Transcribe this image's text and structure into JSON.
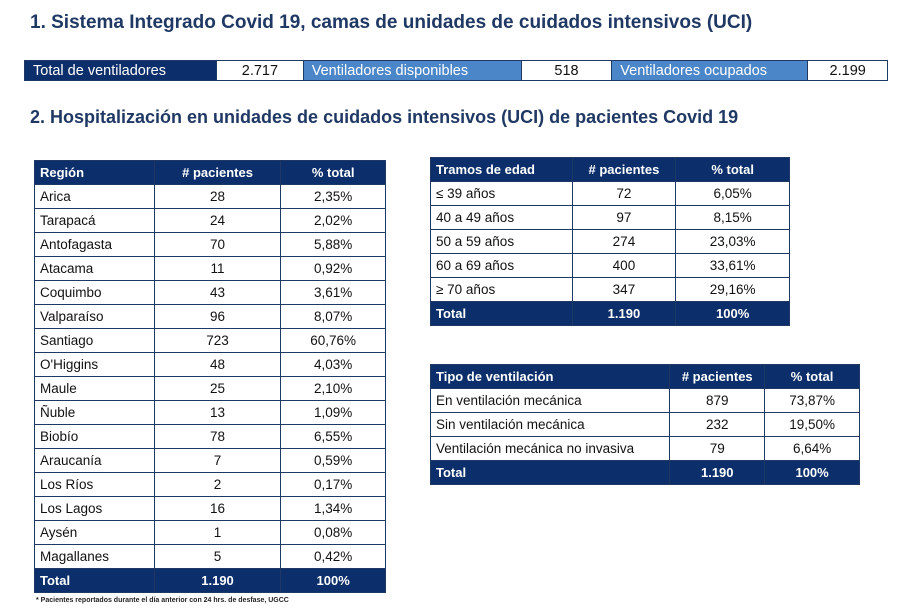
{
  "section1_title": "1. Sistema Integrado Covid 19, camas de unidades de cuidados intensivos (UCI)",
  "summary": {
    "total_label": "Total de ventiladores",
    "total_value": "2.717",
    "disponibles_label": "Ventiladores disponibles",
    "disponibles_value": "518",
    "ocupados_label": "Ventiladores ocupados",
    "ocupados_value": "2.199"
  },
  "section2_title": "2. Hospitalización en unidades de cuidados intensivos (UCI) de pacientes Covid 19",
  "region_table": {
    "headers": [
      "Región",
      "# pacientes",
      "% total"
    ],
    "rows": [
      [
        "Arica",
        "28",
        "2,35%"
      ],
      [
        "Tarapacá",
        "24",
        "2,02%"
      ],
      [
        "Antofagasta",
        "70",
        "5,88%"
      ],
      [
        "Atacama",
        "11",
        "0,92%"
      ],
      [
        "Coquimbo",
        "43",
        "3,61%"
      ],
      [
        "Valparaíso",
        "96",
        "8,07%"
      ],
      [
        "Santiago",
        "723",
        "60,76%"
      ],
      [
        "O'Higgins",
        "48",
        "4,03%"
      ],
      [
        "Maule",
        "25",
        "2,10%"
      ],
      [
        "Ñuble",
        "13",
        "1,09%"
      ],
      [
        "Biobío",
        "78",
        "6,55%"
      ],
      [
        "Araucanía",
        "7",
        "0,59%"
      ],
      [
        "Los Ríos",
        "2",
        "0,17%"
      ],
      [
        "Los Lagos",
        "16",
        "1,34%"
      ],
      [
        "Aysén",
        "1",
        "0,08%"
      ],
      [
        "Magallanes",
        "5",
        "0,42%"
      ]
    ],
    "total": [
      "Total",
      "1.190",
      "100%"
    ]
  },
  "age_table": {
    "headers": [
      "Tramos de edad",
      "# pacientes",
      "% total"
    ],
    "rows": [
      [
        "≤ 39 años",
        "72",
        "6,05%"
      ],
      [
        "40 a 49 años",
        "97",
        "8,15%"
      ],
      [
        "50 a 59 años",
        "274",
        "23,03%"
      ],
      [
        "60 a 69 años",
        "400",
        "33,61%"
      ],
      [
        "≥ 70 años",
        "347",
        "29,16%"
      ]
    ],
    "total": [
      "Total",
      "1.190",
      "100%"
    ]
  },
  "ventilation_table": {
    "headers": [
      "Tipo de ventilación",
      "# pacientes",
      "% total"
    ],
    "rows": [
      [
        "En ventilación mecánica",
        "879",
        "73,87%"
      ],
      [
        "Sin ventilación mecánica",
        "232",
        "19,50%"
      ],
      [
        "Ventilación mecánica no invasiva",
        "79",
        "6,64%"
      ]
    ],
    "total": [
      "Total",
      "1.190",
      "100%"
    ]
  },
  "footnote": "* Pacientes reportados durante el día anterior con 24 hrs. de desfase, UGCC",
  "colors": {
    "header_navy": "#0c2f6b",
    "label_blue": "#4a86c8",
    "title_navy": "#1f3864"
  }
}
